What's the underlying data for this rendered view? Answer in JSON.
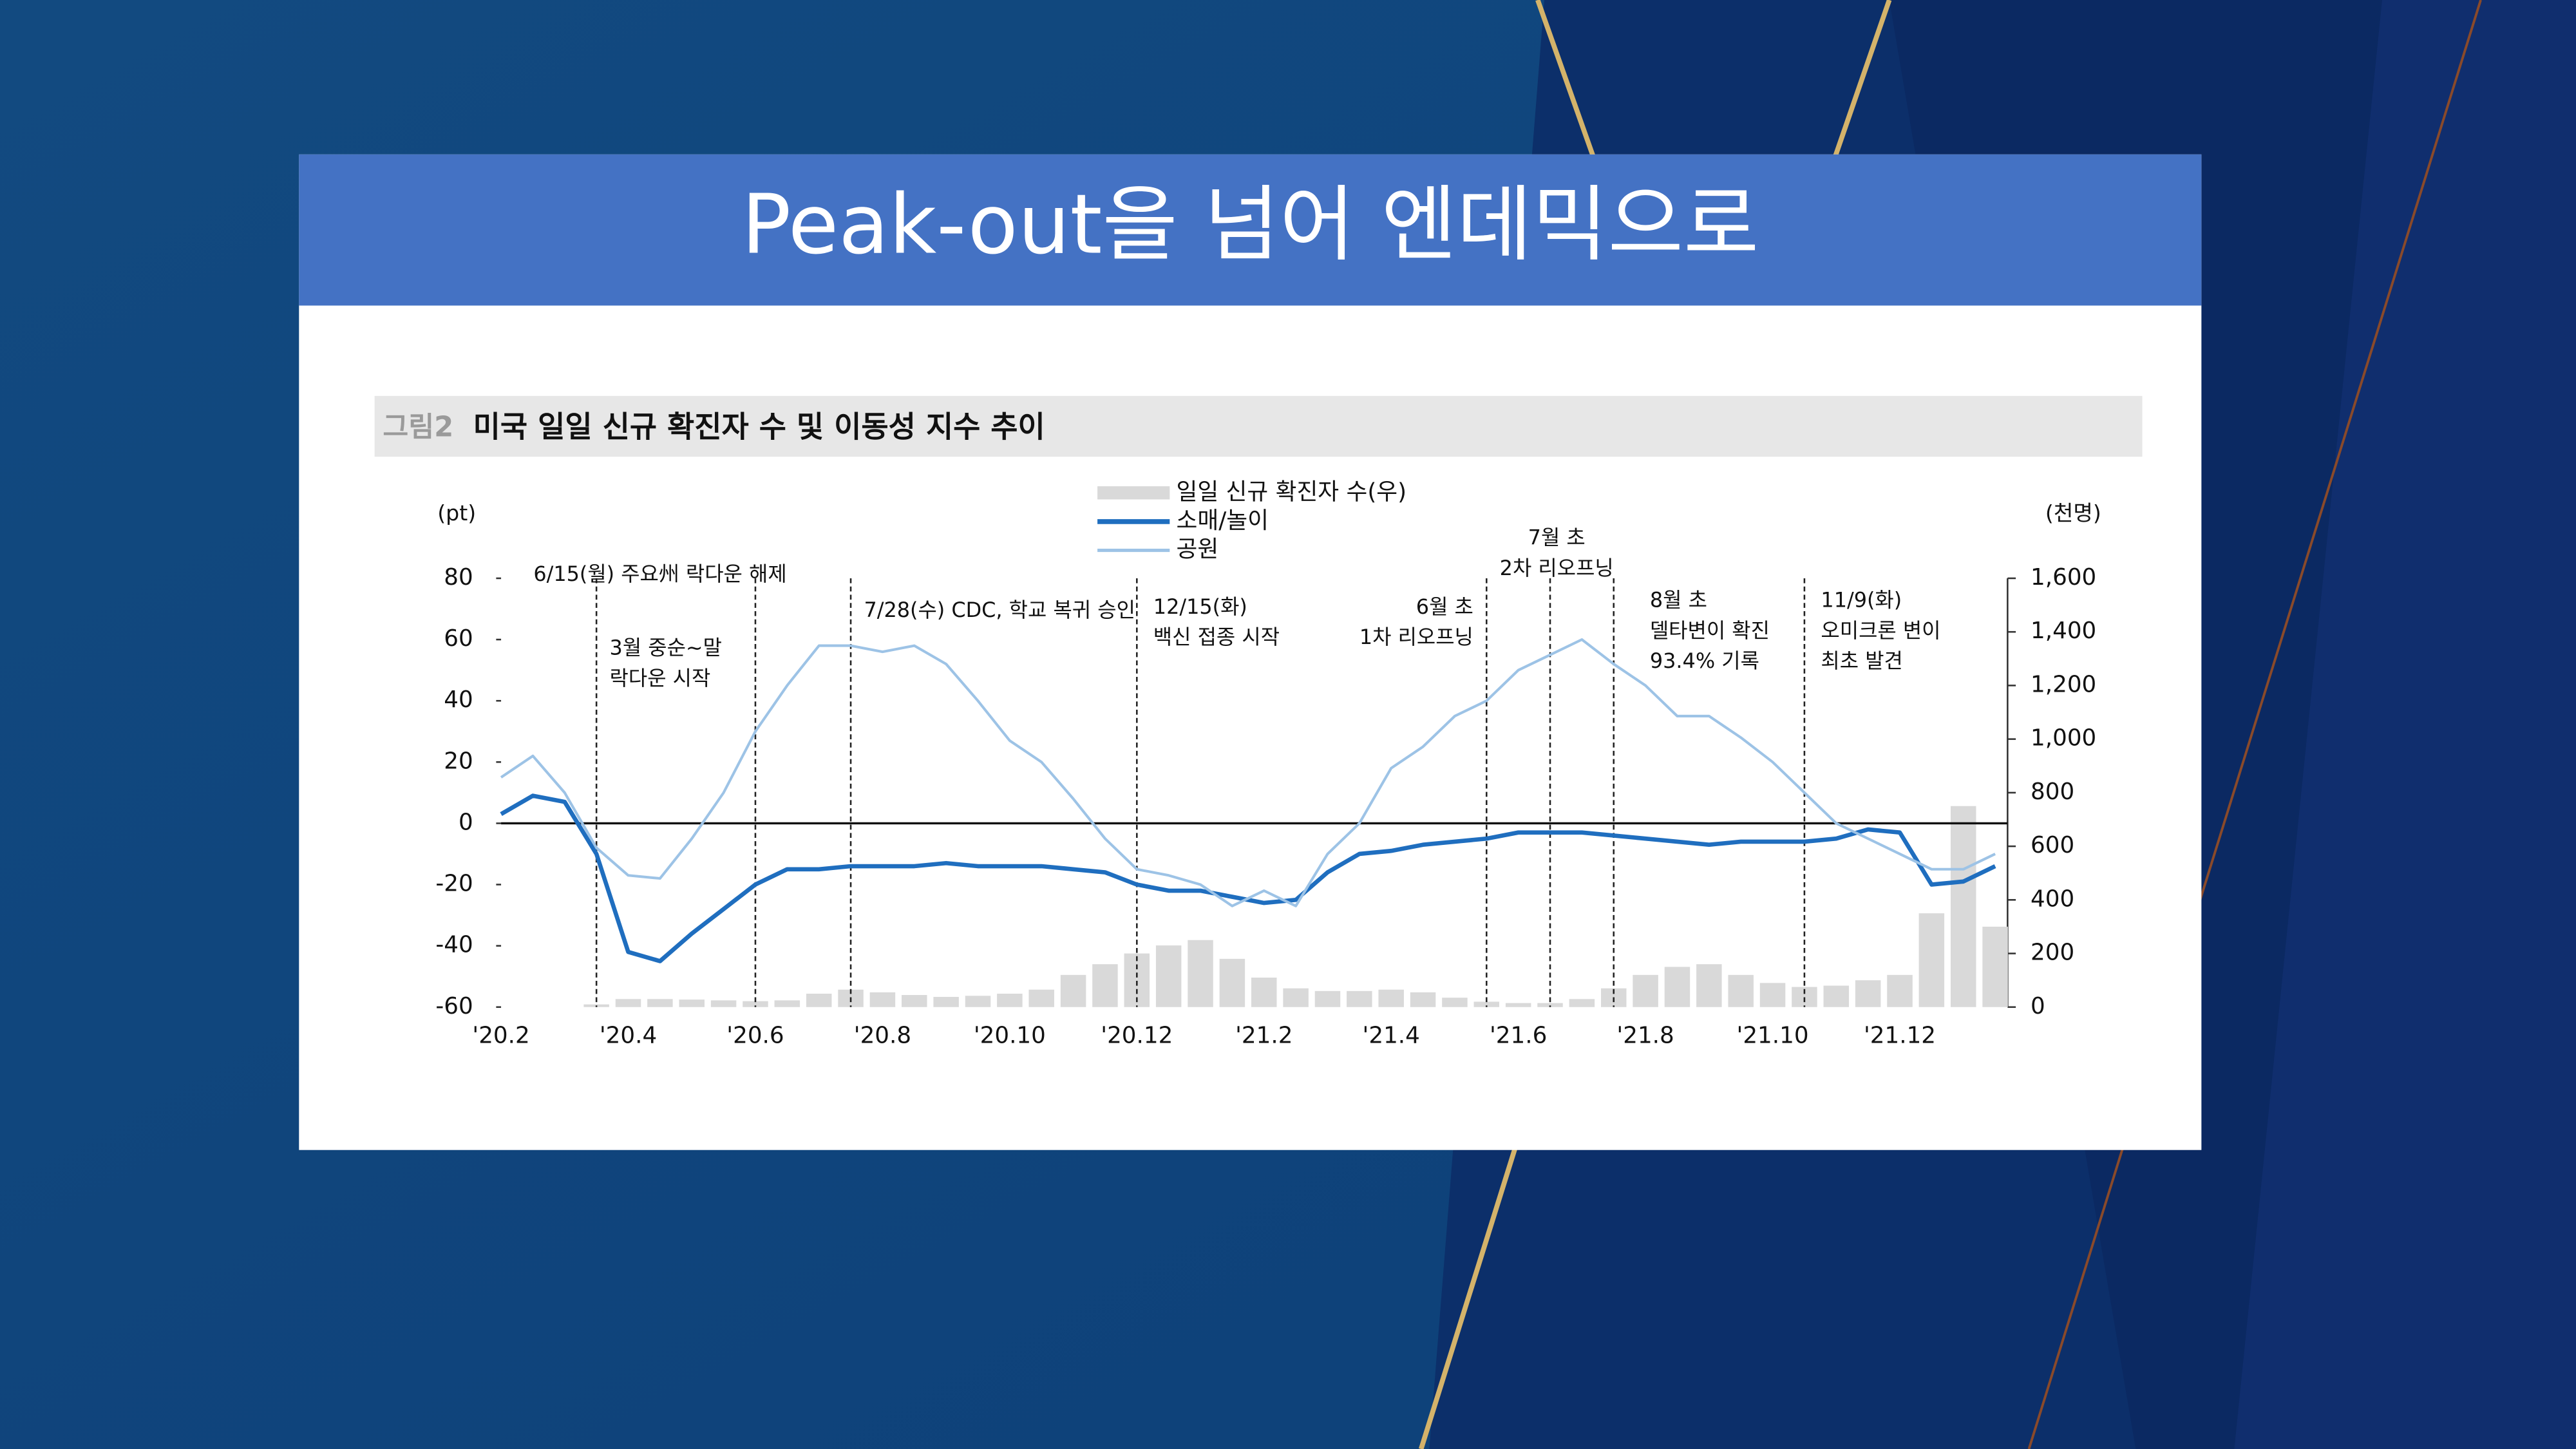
{
  "slide_title": "Peak-out을 넘어 엔데믹으로",
  "chart_data": {
    "type": "combo",
    "figure_label": "그림2",
    "title": "미국 일일 신규 확진자 수 및 이동성 지수 추이",
    "y_label": "(pt)",
    "y2_label": "(천명)",
    "categories": [
      "'20.2",
      null,
      null,
      null,
      "'20.4",
      null,
      null,
      null,
      "'20.6",
      null,
      null,
      null,
      "'20.8",
      null,
      null,
      null,
      "'20.10",
      null,
      null,
      null,
      "'20.12",
      null,
      null,
      null,
      "'21.2",
      null,
      null,
      null,
      "'21.4",
      null,
      null,
      null,
      "'21.6",
      null,
      null,
      null,
      "'21.8",
      null,
      null,
      null,
      "'21.10",
      null,
      null,
      null,
      "'21.12",
      null,
      null,
      null
    ],
    "ylim": [
      -60,
      80
    ],
    "yticks": [
      80,
      60,
      40,
      20,
      0,
      -20,
      -40,
      -60
    ],
    "y2lim": [
      0,
      1600
    ],
    "y2ticks": [
      {
        "value": 1600,
        "label": "1,600"
      },
      {
        "value": 1400,
        "label": "1,400"
      },
      {
        "value": 1200,
        "label": "1,200"
      },
      {
        "value": 1000,
        "label": "1,000"
      },
      800,
      600,
      400,
      200,
      0
    ],
    "series": [
      {
        "name": "일일 신규 확진자 수(우)",
        "type": "bar",
        "axis": "y2",
        "color": "#d9d9d9",
        "values": [
          0,
          0,
          0,
          10,
          30,
          30,
          28,
          25,
          22,
          25,
          50,
          65,
          55,
          45,
          38,
          42,
          50,
          65,
          120,
          160,
          200,
          230,
          250,
          180,
          110,
          70,
          60,
          60,
          65,
          55,
          35,
          20,
          15,
          15,
          30,
          70,
          120,
          150,
          160,
          120,
          90,
          75,
          80,
          100,
          120,
          350,
          750,
          300
        ]
      },
      {
        "name": "소매/놀이",
        "type": "line",
        "color": "#1f6ebf",
        "values": [
          3,
          9,
          7,
          -10,
          -42,
          -45,
          -36,
          -28,
          -20,
          -15,
          -15,
          -14,
          -14,
          -14,
          -13,
          -14,
          -14,
          -14,
          -15,
          -16,
          -20,
          -22,
          -22,
          -24,
          -26,
          -25,
          -16,
          -10,
          -9,
          -7,
          -6,
          -5,
          -3,
          -3,
          -3,
          -4,
          -5,
          -6,
          -7,
          -6,
          -6,
          -6,
          -5,
          -2,
          -3,
          -20,
          -19,
          -14
        ]
      },
      {
        "name": "공원",
        "type": "line",
        "color": "#9dc3e6",
        "values": [
          15,
          22,
          10,
          -8,
          -17,
          -18,
          -5,
          10,
          30,
          45,
          58,
          58,
          56,
          58,
          52,
          40,
          27,
          20,
          8,
          -5,
          -15,
          -17,
          -20,
          -27,
          -22,
          -27,
          -10,
          0,
          18,
          25,
          35,
          40,
          50,
          55,
          60,
          52,
          45,
          35,
          35,
          28,
          20,
          10,
          0,
          -5,
          -10,
          -15,
          -15,
          -10
        ]
      }
    ],
    "annotations": [
      {
        "index": 3,
        "lines": [
          "3월 중순~말",
          "락다운 시작"
        ]
      },
      {
        "index": 8,
        "lines": [
          "6/15(월) 주요州 락다운 해제"
        ]
      },
      {
        "index": 11,
        "lines": [
          "7/28(수) CDC, 학교 복귀 승인"
        ]
      },
      {
        "index": 20,
        "lines": [
          "12/15(화)",
          "백신 접종 시작"
        ]
      },
      {
        "index": 31,
        "lines": [
          "6월 초",
          "1차 리오프닝"
        ]
      },
      {
        "index": 33,
        "lines": [
          "7월 초",
          "2차 리오프닝"
        ]
      },
      {
        "index": 35,
        "lines": [
          "8월 초",
          "델타변이 확진",
          "93.4% 기록"
        ]
      },
      {
        "index": 41,
        "lines": [
          "11/9(화)",
          "오미크론 변이",
          "최초 발견"
        ]
      }
    ]
  }
}
